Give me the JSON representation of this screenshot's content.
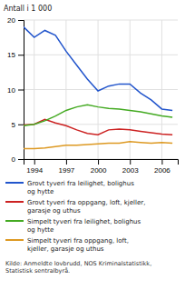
{
  "chart_data": {
    "type": "line",
    "ylabel": "Antall i 1 000",
    "x": [
      1993,
      1994,
      1995,
      1996,
      1997,
      1998,
      1999,
      2000,
      2001,
      2002,
      2003,
      2004,
      2005,
      2006,
      2007
    ],
    "series": [
      {
        "name": "Grovt tyveri fra leilighet, bolighus\nog hytte",
        "color": "#2255cc",
        "values": [
          19.0,
          17.5,
          18.5,
          17.8,
          15.5,
          13.5,
          11.5,
          9.8,
          10.5,
          10.8,
          10.8,
          9.5,
          8.5,
          7.2,
          7.0
        ]
      },
      {
        "name": "Grovt tyveri fra oppgang, loft, kjeller,\ngarasje og uthus",
        "color": "#cc2222",
        "values": [
          4.9,
          5.0,
          5.7,
          5.2,
          4.8,
          4.2,
          3.7,
          3.5,
          4.2,
          4.3,
          4.2,
          4.0,
          3.8,
          3.6,
          3.5
        ]
      },
      {
        "name": "Simpelt tyveri fra leilighet, bolighus\nog hytte",
        "color": "#44aa22",
        "values": [
          4.8,
          5.0,
          5.5,
          6.2,
          7.0,
          7.5,
          7.8,
          7.5,
          7.3,
          7.2,
          7.0,
          6.8,
          6.5,
          6.2,
          6.0
        ]
      },
      {
        "name": "Simpelt tyveri fra oppgang, loft,\nkjeller, garasje og uthus",
        "color": "#dd9922",
        "values": [
          1.5,
          1.5,
          1.6,
          1.8,
          2.0,
          2.0,
          2.1,
          2.2,
          2.3,
          2.3,
          2.5,
          2.4,
          2.3,
          2.4,
          2.3
        ]
      }
    ],
    "xlim": [
      1993,
      2007.5
    ],
    "xticks": [
      1994,
      1997,
      2000,
      2003,
      2006
    ],
    "ylim": [
      0,
      20
    ],
    "yticks": [
      0,
      5,
      10,
      15,
      20
    ],
    "grid": true,
    "legend": "bottom",
    "annotations": [
      "Kilde: Anmeldte lovbrudd, NOS Kriminalstatistikk,\nStatistisk sentralbyrå."
    ]
  }
}
